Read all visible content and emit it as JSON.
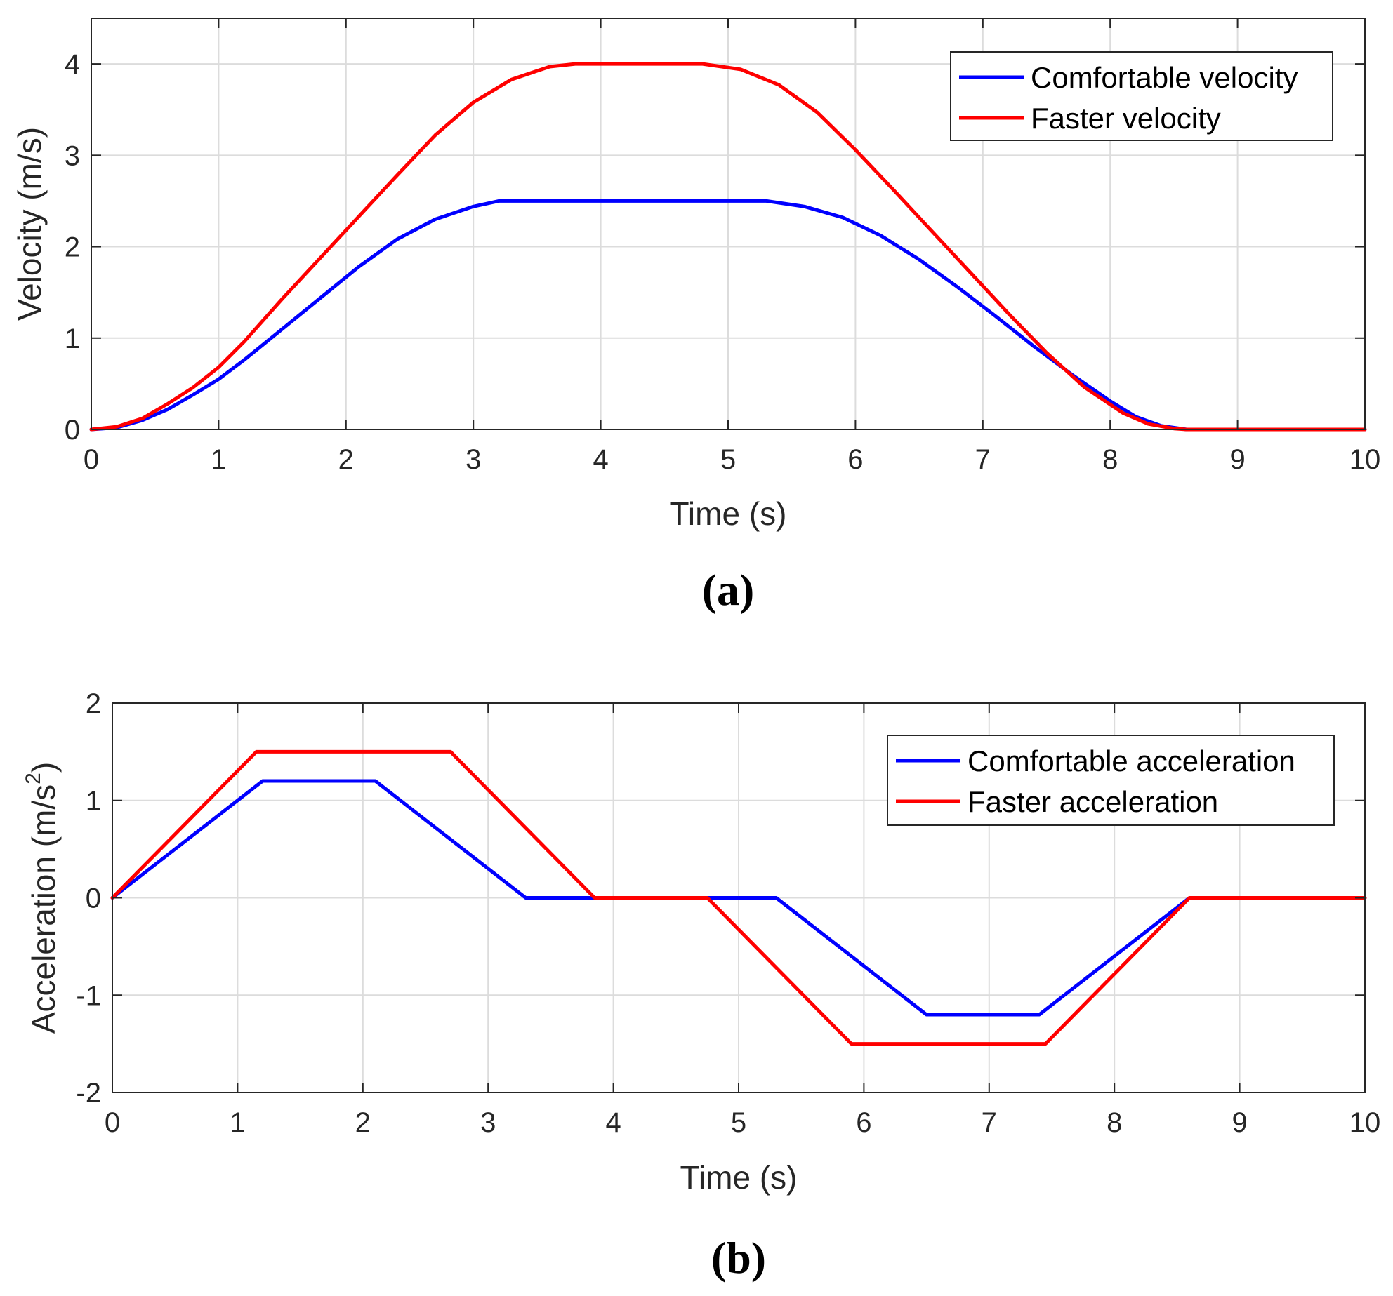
{
  "chart_data": [
    {
      "type": "line",
      "id": "a",
      "caption": "(a)",
      "title": "",
      "xlabel": "Time (s)",
      "ylabel": "Velocity (m/s)",
      "xlim": [
        0,
        10
      ],
      "ylim": [
        0,
        4.5
      ],
      "xticks": [
        0,
        1,
        2,
        3,
        4,
        5,
        6,
        7,
        8,
        9,
        10
      ],
      "xtick_labels": [
        "0",
        "1",
        "2",
        "3",
        "4",
        "5",
        "6",
        "7",
        "8",
        "9",
        "10"
      ],
      "yticks": [
        0,
        1,
        2,
        3,
        4
      ],
      "ytick_labels": [
        "0",
        "1",
        "2",
        "3",
        "4"
      ],
      "grid": true,
      "legend_position": "top-right",
      "series": [
        {
          "name": "Comfortable velocity",
          "color": "#0000ff",
          "x": [
            0,
            0.2,
            0.4,
            0.6,
            0.8,
            1.0,
            1.2,
            1.5,
            1.8,
            2.1,
            2.4,
            2.7,
            3.0,
            3.2,
            3.5,
            4.0,
            4.5,
            5.0,
            5.3,
            5.6,
            5.9,
            6.2,
            6.5,
            6.8,
            7.1,
            7.4,
            7.7,
            8.0,
            8.2,
            8.4,
            8.6,
            9.0,
            10.0
          ],
          "y": [
            0,
            0.02,
            0.1,
            0.22,
            0.38,
            0.55,
            0.76,
            1.1,
            1.44,
            1.78,
            2.08,
            2.3,
            2.44,
            2.5,
            2.5,
            2.5,
            2.5,
            2.5,
            2.5,
            2.44,
            2.32,
            2.12,
            1.86,
            1.56,
            1.24,
            0.91,
            0.6,
            0.31,
            0.14,
            0.04,
            0,
            0,
            0
          ]
        },
        {
          "name": "Faster velocity",
          "color": "#ff0000",
          "x": [
            0,
            0.2,
            0.4,
            0.6,
            0.8,
            1.0,
            1.2,
            1.5,
            1.8,
            2.1,
            2.4,
            2.7,
            3.0,
            3.3,
            3.6,
            3.8,
            4.2,
            4.6,
            4.8,
            5.1,
            5.4,
            5.7,
            6.0,
            6.3,
            6.6,
            6.9,
            7.2,
            7.5,
            7.8,
            8.1,
            8.3,
            8.5,
            8.6,
            9.0,
            10.0
          ],
          "y": [
            0,
            0.03,
            0.12,
            0.28,
            0.46,
            0.68,
            0.96,
            1.43,
            1.88,
            2.33,
            2.78,
            3.22,
            3.58,
            3.83,
            3.97,
            4.0,
            4.0,
            4.0,
            4.0,
            3.94,
            3.77,
            3.47,
            3.06,
            2.62,
            2.17,
            1.72,
            1.27,
            0.84,
            0.46,
            0.18,
            0.06,
            0.01,
            0,
            0,
            0
          ]
        }
      ]
    },
    {
      "type": "line",
      "id": "b",
      "caption": "(b)",
      "title": "",
      "xlabel": "Time (s)",
      "ylabel": "Acceleration (m/s",
      "ylabel_superscript": "2",
      "ylabel_suffix": ")",
      "xlim": [
        0,
        10
      ],
      "ylim": [
        -2,
        2
      ],
      "xticks": [
        0,
        1,
        2,
        3,
        4,
        5,
        6,
        7,
        8,
        9,
        10
      ],
      "xtick_labels": [
        "0",
        "1",
        "2",
        "3",
        "4",
        "5",
        "6",
        "7",
        "8",
        "9",
        "10"
      ],
      "yticks": [
        -2,
        -1,
        0,
        1,
        2
      ],
      "ytick_labels": [
        "-2",
        "-1",
        "0",
        "1",
        "2"
      ],
      "grid": true,
      "legend_position": "top-right",
      "series": [
        {
          "name": "Comfortable acceleration",
          "color": "#0000ff",
          "x": [
            0,
            1.2,
            2.1,
            3.3,
            5.3,
            6.5,
            7.4,
            8.6,
            10
          ],
          "y": [
            0,
            1.2,
            1.2,
            0,
            0,
            -1.2,
            -1.2,
            0,
            0
          ]
        },
        {
          "name": "Faster acceleration",
          "color": "#ff0000",
          "x": [
            0,
            1.15,
            2.7,
            3.85,
            4.75,
            5.9,
            7.45,
            8.6,
            10
          ],
          "y": [
            0,
            1.5,
            1.5,
            0,
            0,
            -1.5,
            -1.5,
            0,
            0
          ]
        }
      ]
    }
  ]
}
